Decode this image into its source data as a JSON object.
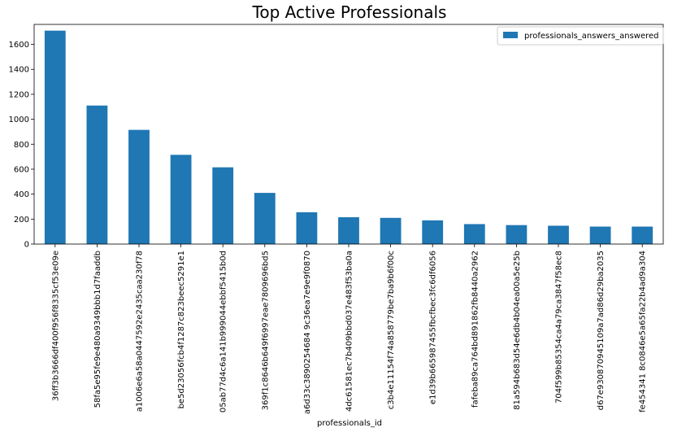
{
  "chart_data": {
    "type": "bar",
    "title": "Top Active Professionals",
    "xlabel": "professionals_id",
    "ylabel": "",
    "ylim": [
      0,
      1760
    ],
    "yticks": [
      0,
      200,
      400,
      600,
      800,
      1000,
      1200,
      1400,
      1600
    ],
    "grid": false,
    "legend_position": "top-right",
    "colors": {
      "bar": "#1f77b4"
    },
    "categories": [
      "36ff3b3666df400f956f8335cf53e09e",
      "58fa5e95fe9e480a9349bbb1d7faaddb",
      "a1006e6a58a0447592e2435caa230f78",
      "be5d23056fcb4f1287c823beec5291e1",
      "05ab77d4c6a141b999044ebbf5415b0d",
      "369f1c8646b649f6997eae7809696bd5",
      "a6d33c3890254684 9c36ea7e9e9f0870",
      "4dc61581ec7b409bbd037e483f53ba0a",
      "c3b4e11154f74a858779be7ba9b6f00c",
      "e1d39b665987455fbcfbec3fc6df6056",
      "fafeba89ca764bd891862fb8440a2962",
      "81a594b683d54e6db4b04ea00a5e25b",
      "704f599b85354ca4a79ca3847f58ec8",
      "d67e930870945109a7ad86d29ba2035",
      "fe454341 8c0846e5a65fa22b4ad9a304"
    ],
    "series": [
      {
        "name": "professionals_answers_answered",
        "values": [
          1710,
          1110,
          915,
          715,
          615,
          410,
          255,
          215,
          210,
          190,
          160,
          152,
          147,
          140,
          140
        ]
      }
    ]
  }
}
